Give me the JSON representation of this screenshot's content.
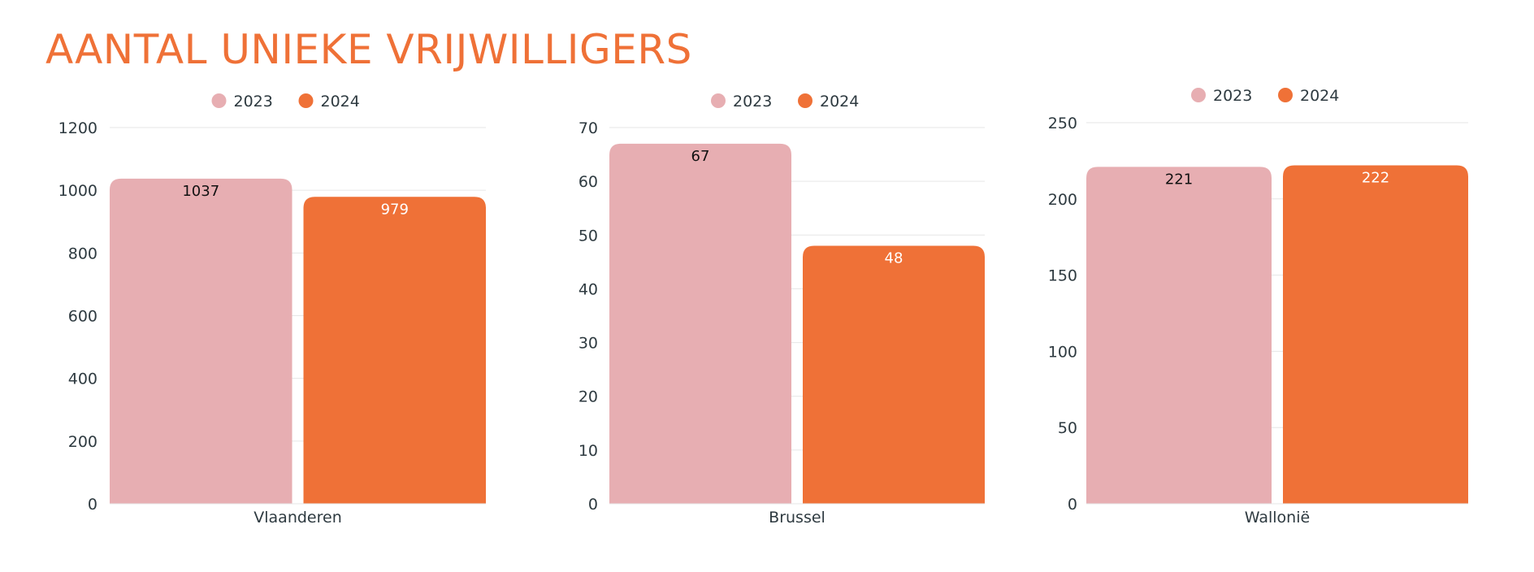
{
  "title": "AANTAL UNIEKE VRIJWILLIGERS",
  "colors": {
    "title": "#ef7137",
    "series_2023": "#e7aeb2",
    "series_2024": "#ef7137",
    "grid": "#e6e6e6",
    "text": "#2e3a40"
  },
  "chart_data": [
    {
      "type": "bar",
      "categories": [
        "Vlaanderen"
      ],
      "series": [
        {
          "name": "2023",
          "values": [
            1037
          ]
        },
        {
          "name": "2024",
          "values": [
            979
          ]
        }
      ],
      "ylim": [
        0,
        1200
      ],
      "yticks": [
        0,
        200,
        400,
        600,
        800,
        1000,
        1200
      ],
      "legend": "top-center",
      "grid": true
    },
    {
      "type": "bar",
      "categories": [
        "Brussel"
      ],
      "series": [
        {
          "name": "2023",
          "values": [
            67
          ]
        },
        {
          "name": "2024",
          "values": [
            48
          ]
        }
      ],
      "ylim": [
        0,
        70
      ],
      "yticks": [
        0,
        10,
        20,
        30,
        40,
        50,
        60,
        70
      ],
      "legend": "top-center",
      "grid": true
    },
    {
      "type": "bar",
      "categories": [
        "Wallonië"
      ],
      "series": [
        {
          "name": "2023",
          "values": [
            221
          ]
        },
        {
          "name": "2024",
          "values": [
            222
          ]
        }
      ],
      "ylim": [
        0,
        250
      ],
      "yticks": [
        0,
        50,
        100,
        150,
        200,
        250
      ],
      "legend": "top-center",
      "grid": true
    }
  ]
}
